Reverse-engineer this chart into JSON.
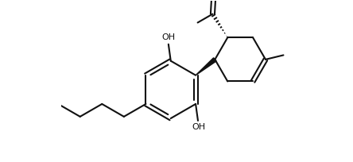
{
  "bg_color": "#ffffff",
  "line_color": "#111111",
  "line_width": 1.5,
  "font_size": 8,
  "fig_width": 4.44,
  "fig_height": 2.04,
  "dpi": 100,
  "xlim": [
    -3.5,
    4.5
  ],
  "ylim": [
    -2.8,
    2.8
  ]
}
